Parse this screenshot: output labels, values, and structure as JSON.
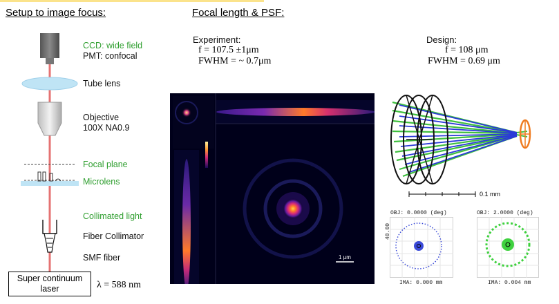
{
  "headings": {
    "setup": "Setup to image focus:",
    "focal": "Focal length & PSF:"
  },
  "setup": {
    "ccd": "CCD: wide field",
    "pmt": "PMT: confocal",
    "tube_lens": "Tube lens",
    "objective_line1": "Objective",
    "objective_line2": "100X NA0.9",
    "focal_plane": "Focal plane",
    "microlens": "Microlens",
    "collimated": "Collimated light",
    "fiber_collimator": "Fiber Collimator",
    "smf_fiber": "SMF fiber",
    "laser_line1": "Super continuum",
    "laser_line2": "laser",
    "wavelength": "λ = 588 nm"
  },
  "experiment": {
    "title": "Experiment:",
    "f": "f = 107.5 ±1μm",
    "fwhm": "FWHM = ~ 0.7μm"
  },
  "design": {
    "title": "Design:",
    "f": "f = 108 μm",
    "fwhm": "FWHM = 0.69 μm"
  },
  "psf_scalebar": "1 μm",
  "raytrace_scalebar": "0.1 mm",
  "spot1": {
    "obj": "OBJ: 0.0000 (deg)",
    "ima": "IMA: 0.000 mm",
    "axis": "40.00"
  },
  "spot2": {
    "obj": "OBJ: 2.0000 (deg)",
    "ima": "IMA: 0.004 mm"
  },
  "colors": {
    "beam": "#e57373",
    "green_label": "#2e9e2e",
    "tube_lens": "#bfe4f5",
    "spot_blue": "#3a4ad8",
    "spot_green": "#3fd13f",
    "ray_orange": "#ef7b1f"
  }
}
